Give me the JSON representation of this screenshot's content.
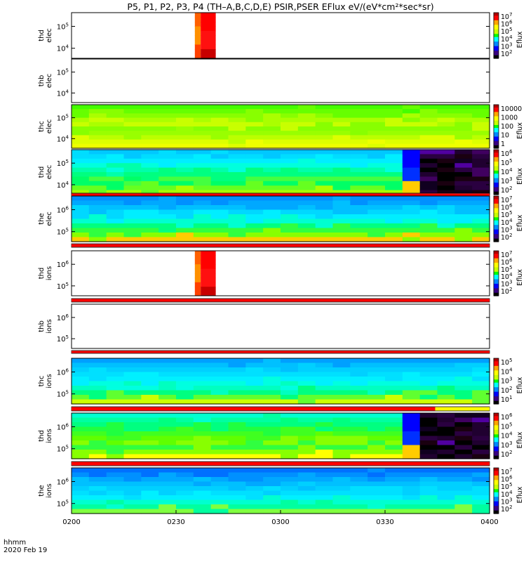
{
  "chart_data": {
    "type": "heatmap",
    "title": "P5, P1, P2, P3, P4 (TH–A,B,C,D,E) PSIR,PSER EFlux eV/(eV*cm²*sec*sr)",
    "x_ticks": [
      "0200",
      "0230",
      "0300",
      "0330",
      "0400"
    ],
    "x_range": [
      "02:00",
      "04:00"
    ],
    "date_label_line1": "hhmm",
    "date_label_line2": "2020 Feb 19",
    "colorbar_label": "Eflux",
    "panels": [
      {
        "probe": "thd",
        "species": "elec",
        "y_ticks": [
          {
            "b": "10",
            "e": "5"
          },
          {
            "b": "10",
            "e": "4"
          }
        ],
        "colorbar_ticks": [
          {
            "b": "10",
            "e": "7"
          },
          {
            "b": "10",
            "e": "6"
          },
          {
            "b": "10",
            "e": "5"
          },
          {
            "b": "10",
            "e": "4"
          },
          {
            "b": "10",
            "e": "3"
          },
          {
            "b": "10",
            "e": "2"
          }
        ],
        "data_window": [
          0.295,
          0.345
        ],
        "pattern": "burst",
        "bands_below": []
      },
      {
        "probe": "thb",
        "species": "elec",
        "y_ticks": [
          {
            "b": "10",
            "e": "5"
          },
          {
            "b": "10",
            "e": "4"
          }
        ],
        "colorbar_ticks": [],
        "data_window": null,
        "pattern": "empty",
        "bands_below": []
      },
      {
        "probe": "thc",
        "species": "elec",
        "y_ticks": [
          {
            "b": "10",
            "e": "5"
          },
          {
            "b": "10",
            "e": "4"
          }
        ],
        "colorbar_ticks": [
          {
            "b": "10000",
            "e": ""
          },
          {
            "b": "1000",
            "e": ""
          },
          {
            "b": "100",
            "e": ""
          },
          {
            "b": "10",
            "e": ""
          },
          {
            "b": "1",
            "e": ""
          }
        ],
        "data_window": [
          0,
          1
        ],
        "pattern": "green_yellow",
        "bands_below": []
      },
      {
        "probe": "thd",
        "species": "elec",
        "y_ticks": [
          {
            "b": "10",
            "e": "5"
          },
          {
            "b": "10",
            "e": "4"
          }
        ],
        "colorbar_ticks": [
          {
            "b": "10",
            "e": "6"
          },
          {
            "b": "10",
            "e": "5"
          },
          {
            "b": "10",
            "e": "4"
          },
          {
            "b": "10",
            "e": "3"
          },
          {
            "b": "10",
            "e": "2"
          }
        ],
        "data_window": [
          0,
          1
        ],
        "pattern": "cyan_green_dark",
        "dark_start": 0.77,
        "bands_below": [
          {
            "color": "#ff0000",
            "from": 0,
            "to": 1
          }
        ]
      },
      {
        "probe": "the",
        "species": "elec",
        "y_ticks": [
          {
            "b": "10",
            "e": "6"
          },
          {
            "b": "10",
            "e": "5"
          }
        ],
        "colorbar_ticks": [
          {
            "b": "10",
            "e": "7"
          },
          {
            "b": "10",
            "e": "6"
          },
          {
            "b": "10",
            "e": "5"
          },
          {
            "b": "10",
            "e": "4"
          },
          {
            "b": "10",
            "e": "3"
          },
          {
            "b": "10",
            "e": "2"
          }
        ],
        "data_window": [
          0,
          1
        ],
        "pattern": "blue_cyan_green",
        "bands_below": [
          {
            "color": "#ff0000",
            "from": 0,
            "to": 1
          }
        ]
      },
      {
        "probe": "thd",
        "species": "ions",
        "y_ticks": [
          {
            "b": "10",
            "e": "6"
          },
          {
            "b": "10",
            "e": "5"
          }
        ],
        "colorbar_ticks": [
          {
            "b": "10",
            "e": "7"
          },
          {
            "b": "10",
            "e": "6"
          },
          {
            "b": "10",
            "e": "5"
          },
          {
            "b": "10",
            "e": "4"
          },
          {
            "b": "10",
            "e": "3"
          },
          {
            "b": "10",
            "e": "2"
          }
        ],
        "data_window": [
          0.295,
          0.345
        ],
        "pattern": "burst",
        "bands_below": [
          {
            "color": "#ff0000",
            "from": 0,
            "to": 1
          }
        ]
      },
      {
        "probe": "thb",
        "species": "ions",
        "y_ticks": [
          {
            "b": "10",
            "e": "6"
          },
          {
            "b": "10",
            "e": "5"
          }
        ],
        "colorbar_ticks": [],
        "data_window": null,
        "pattern": "empty",
        "bands_below": [
          {
            "color": "#ff0000",
            "from": 0,
            "to": 1
          }
        ]
      },
      {
        "probe": "thc",
        "species": "ions",
        "y_ticks": [
          {
            "b": "10",
            "e": "6"
          },
          {
            "b": "10",
            "e": "5"
          }
        ],
        "colorbar_ticks": [
          {
            "b": "10",
            "e": "5"
          },
          {
            "b": "10",
            "e": "4"
          },
          {
            "b": "10",
            "e": "3"
          },
          {
            "b": "10",
            "e": "2"
          },
          {
            "b": "10",
            "e": "1"
          }
        ],
        "data_window": [
          0,
          1
        ],
        "pattern": "cyan_green",
        "bands_below": [
          {
            "color": "#ff0000",
            "from": 0,
            "to": 0.87
          },
          {
            "color": "#ffff00",
            "from": 0.87,
            "to": 1
          }
        ]
      },
      {
        "probe": "thd",
        "species": "ions",
        "y_ticks": [
          {
            "b": "10",
            "e": "6"
          },
          {
            "b": "10",
            "e": "5"
          }
        ],
        "colorbar_ticks": [
          {
            "b": "10",
            "e": "6"
          },
          {
            "b": "10",
            "e": "5"
          },
          {
            "b": "10",
            "e": "4"
          },
          {
            "b": "10",
            "e": "3"
          },
          {
            "b": "10",
            "e": "2"
          }
        ],
        "data_window": [
          0,
          1
        ],
        "pattern": "green_dark",
        "dark_start": 0.77,
        "bands_below": [
          {
            "color": "#ff0000",
            "from": 0,
            "to": 1
          }
        ]
      },
      {
        "probe": "the",
        "species": "ions",
        "y_ticks": [
          {
            "b": "10",
            "e": "6"
          },
          {
            "b": "10",
            "e": "5"
          }
        ],
        "colorbar_ticks": [
          {
            "b": "10",
            "e": "7"
          },
          {
            "b": "10",
            "e": "6"
          },
          {
            "b": "10",
            "e": "5"
          },
          {
            "b": "10",
            "e": "4"
          },
          {
            "b": "10",
            "e": "3"
          },
          {
            "b": "10",
            "e": "2"
          }
        ],
        "data_window": [
          0,
          1
        ],
        "pattern": "blue_cyan",
        "bands_below": []
      }
    ]
  }
}
